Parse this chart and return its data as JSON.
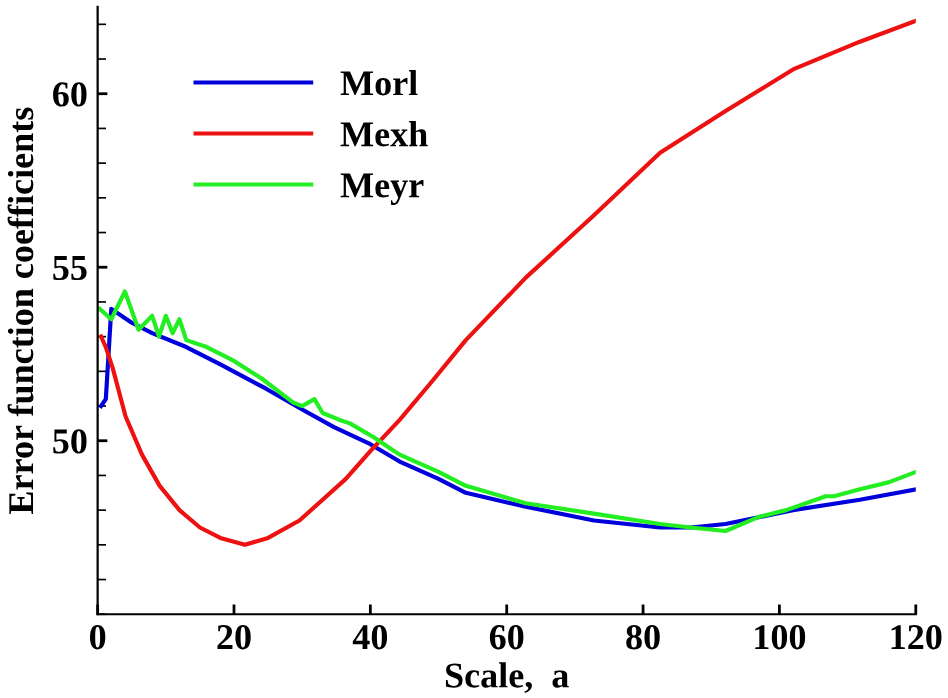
{
  "chart_data": {
    "type": "line",
    "xlabel": "Scale,  a",
    "ylabel": "Error function coefficients",
    "xlim": [
      0,
      120
    ],
    "ylim": [
      45,
      62.5
    ],
    "xticks": [
      0,
      20,
      40,
      60,
      80,
      100,
      120
    ],
    "yticks": [
      50,
      55,
      60
    ],
    "grid": false,
    "legend": "top left",
    "marker": "none",
    "line_style": "solid",
    "series": [
      {
        "name": "Morl",
        "color": "#0000dd",
        "x": [
          0.5,
          1.2,
          2,
          5,
          8,
          13,
          18,
          24.7,
          30,
          34.6,
          40,
          44.3,
          50,
          54,
          62.8,
          72.8,
          82.5,
          87,
          92.1,
          102,
          111.8,
          120
        ],
        "values": [
          51.0,
          51.2,
          53.8,
          53.4,
          53.1,
          52.7,
          52.2,
          51.5,
          50.9,
          50.4,
          49.9,
          49.4,
          48.9,
          48.5,
          48.1,
          47.7,
          47.5,
          47.5,
          47.6,
          48.0,
          48.3,
          48.6
        ]
      },
      {
        "name": "Mexh",
        "color": "#ee1111",
        "x": [
          0.5,
          1.2,
          2.2,
          4.1,
          6.5,
          9.1,
          12,
          15,
          18,
          21.6,
          25,
          29.6,
          33,
          36.4,
          40,
          44.3,
          49,
          54,
          62.8,
          72.8,
          82.5,
          92.1,
          102,
          111.8,
          120
        ],
        "values": [
          53.0,
          52.7,
          52.1,
          50.7,
          49.6,
          48.7,
          48.0,
          47.5,
          47.2,
          47.0,
          47.2,
          47.7,
          48.3,
          48.9,
          49.7,
          50.6,
          51.7,
          52.9,
          54.7,
          56.5,
          58.3,
          59.5,
          60.7,
          61.5,
          62.1
        ]
      },
      {
        "name": "Meyr",
        "color": "#22ee22",
        "x": [
          0.3,
          2,
          4,
          6,
          8,
          9,
          10,
          11,
          12,
          13,
          16,
          20,
          24,
          28.7,
          30,
          31.8,
          33,
          35.5,
          37,
          40.5,
          42,
          44.3,
          50,
          54,
          62.8,
          72.8,
          82.5,
          87,
          92.1,
          96.9,
          101,
          106.8,
          108,
          111.8,
          116,
          120
        ],
        "values": [
          53.8,
          53.5,
          54.3,
          53.2,
          53.6,
          53.0,
          53.6,
          53.1,
          53.5,
          52.9,
          52.7,
          52.3,
          51.8,
          51.1,
          51.0,
          51.2,
          50.8,
          50.6,
          50.5,
          50.1,
          49.9,
          49.6,
          49.1,
          48.7,
          48.2,
          47.9,
          47.6,
          47.5,
          47.4,
          47.8,
          48.0,
          48.4,
          48.4,
          48.6,
          48.8,
          49.1
        ]
      }
    ]
  }
}
